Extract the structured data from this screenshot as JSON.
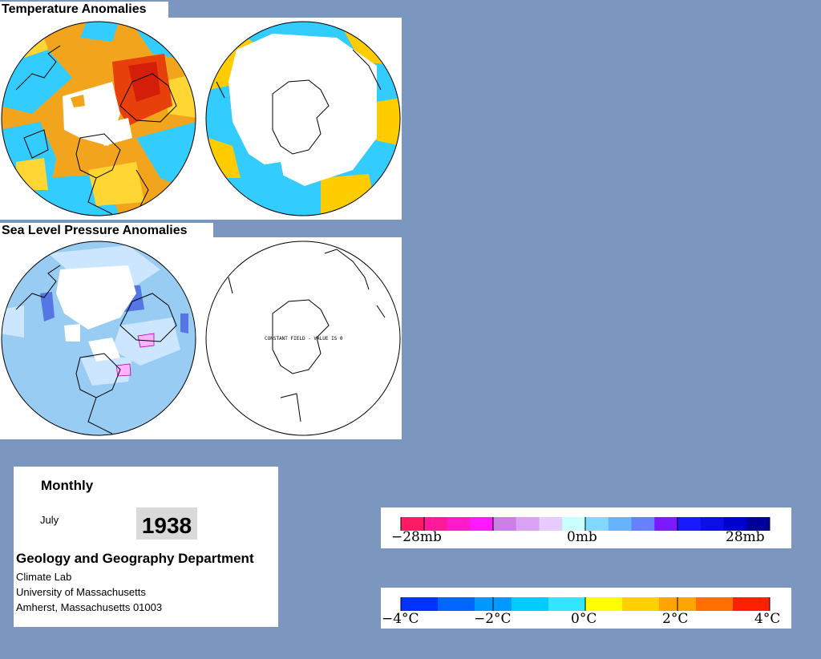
{
  "page": {
    "background": "#7b97bf"
  },
  "titles": {
    "temperature": "Temperature Anomalies",
    "pressure": "Sea Level Pressure Anomalies"
  },
  "maps": {
    "temperature": {
      "north": "north-pole-temperature-anomaly-map",
      "south": "south-pole-temperature-anomaly-map"
    },
    "pressure": {
      "north": "north-pole-pressure-anomaly-map",
      "south": "south-pole-pressure-anomaly-map",
      "south_note": "CONSTANT FIELD - VALUE IS 0"
    }
  },
  "info": {
    "period": "Monthly",
    "month": "July",
    "year": "1938",
    "department": "Geology and Geography Department",
    "address": [
      "Climate Lab",
      "University of Massachusetts",
      "Amherst, Massachusetts 01003"
    ]
  },
  "legend_pressure": {
    "ticks": [
      {
        "label": "−28mb",
        "value": -28
      },
      {
        "label": "0mb",
        "value": 0
      },
      {
        "label": "28mb",
        "value": 28
      }
    ],
    "colors": [
      "#ff1a66",
      "#ff1a99",
      "#ff1acc",
      "#ff1aff",
      "#cc80e6",
      "#d9a3f2",
      "#e6ccff",
      "#ccffff",
      "#80d9ff",
      "#66b3ff",
      "#6680ff",
      "#7a1aff",
      "#1a1aff",
      "#0d0de6",
      "#0000cc",
      "#000099"
    ]
  },
  "legend_temperature": {
    "ticks": [
      {
        "label": "−4°C",
        "value": -4
      },
      {
        "label": "−2°C",
        "value": -2
      },
      {
        "label": "0°C",
        "value": 0
      },
      {
        "label": "2°C",
        "value": 2
      },
      {
        "label": "4°C",
        "value": 4
      }
    ],
    "range": [
      -4,
      4
    ],
    "colors": [
      "#0033ff",
      "#0066ff",
      "#0099ff",
      "#00ccff",
      "#33e6ff",
      "#ffff00",
      "#ffd000",
      "#ffa500",
      "#ff7000",
      "#ff2000"
    ]
  },
  "map_colors": {
    "cyan": "#33ccff",
    "yellow": "#ffcc00",
    "orange": "#f29d16",
    "red": "#e82a0a",
    "slp_light": "#cce6ff",
    "slp_mid": "#99ccf2",
    "slp_blue": "#5577e6",
    "slp_pink": "#ffb3ff"
  }
}
